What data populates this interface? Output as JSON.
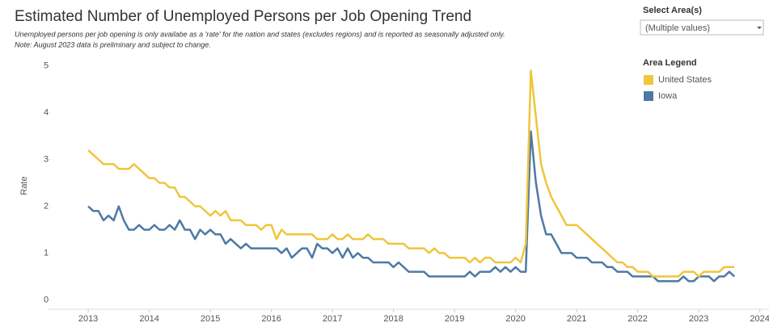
{
  "chart_data": {
    "type": "line",
    "title": "Estimated Number of Unemployed Persons per Job Opening Trend",
    "subtitle": [
      "Unemployed persons per job opening is only availabe as a 'rate' for the nation and states (excludes regions) and is reported as seasonally adjusted only.",
      "Note: August 2023 data is preliminary and subject to change."
    ],
    "y_label": "Rate",
    "filter_label": "Select Area(s)",
    "filter_value": "(Multiple values)",
    "legend_title": "Area Legend",
    "legend": "top-right",
    "grid": false,
    "xlim": [
      2012.35,
      2024.15
    ],
    "ylim": [
      -0.2,
      5.2
    ],
    "xticks": [
      2013,
      2014,
      2015,
      2016,
      2017,
      2018,
      2019,
      2020,
      2021,
      2022,
      2023,
      2024
    ],
    "yticks": [
      0,
      1,
      2,
      3,
      4,
      5
    ],
    "x": [
      2013,
      2013.083,
      2013.167,
      2013.25,
      2013.333,
      2013.417,
      2013.5,
      2013.583,
      2013.667,
      2013.75,
      2013.833,
      2013.917,
      2014,
      2014.083,
      2014.167,
      2014.25,
      2014.333,
      2014.417,
      2014.5,
      2014.583,
      2014.667,
      2014.75,
      2014.833,
      2014.917,
      2015,
      2015.083,
      2015.167,
      2015.25,
      2015.333,
      2015.417,
      2015.5,
      2015.583,
      2015.667,
      2015.75,
      2015.833,
      2015.917,
      2016,
      2016.083,
      2016.167,
      2016.25,
      2016.333,
      2016.417,
      2016.5,
      2016.583,
      2016.667,
      2016.75,
      2016.833,
      2016.917,
      2017,
      2017.083,
      2017.167,
      2017.25,
      2017.333,
      2017.417,
      2017.5,
      2017.583,
      2017.667,
      2017.75,
      2017.833,
      2017.917,
      2018,
      2018.083,
      2018.167,
      2018.25,
      2018.333,
      2018.417,
      2018.5,
      2018.583,
      2018.667,
      2018.75,
      2018.833,
      2018.917,
      2019,
      2019.083,
      2019.167,
      2019.25,
      2019.333,
      2019.417,
      2019.5,
      2019.583,
      2019.667,
      2019.75,
      2019.833,
      2019.917,
      2020,
      2020.083,
      2020.167,
      2020.25,
      2020.333,
      2020.417,
      2020.5,
      2020.583,
      2020.667,
      2020.75,
      2020.833,
      2020.917,
      2021,
      2021.083,
      2021.167,
      2021.25,
      2021.333,
      2021.417,
      2021.5,
      2021.583,
      2021.667,
      2021.75,
      2021.833,
      2021.917,
      2022,
      2022.083,
      2022.167,
      2022.25,
      2022.333,
      2022.417,
      2022.5,
      2022.583,
      2022.667,
      2022.75,
      2022.833,
      2022.917,
      2023,
      2023.083,
      2023.167,
      2023.25,
      2023.333,
      2023.417,
      2023.5,
      2023.583
    ],
    "series": [
      {
        "name": "United States",
        "color": "#efc63c",
        "values": [
          3.2,
          3.1,
          3.0,
          2.9,
          2.9,
          2.9,
          2.8,
          2.8,
          2.8,
          2.9,
          2.8,
          2.7,
          2.6,
          2.6,
          2.5,
          2.5,
          2.4,
          2.4,
          2.2,
          2.2,
          2.1,
          2.0,
          2.0,
          1.9,
          1.8,
          1.9,
          1.8,
          1.9,
          1.7,
          1.7,
          1.7,
          1.6,
          1.6,
          1.6,
          1.5,
          1.6,
          1.6,
          1.3,
          1.5,
          1.4,
          1.4,
          1.4,
          1.4,
          1.4,
          1.4,
          1.3,
          1.3,
          1.3,
          1.4,
          1.3,
          1.3,
          1.4,
          1.3,
          1.3,
          1.3,
          1.4,
          1.3,
          1.3,
          1.3,
          1.2,
          1.2,
          1.2,
          1.2,
          1.1,
          1.1,
          1.1,
          1.1,
          1.0,
          1.1,
          1.0,
          1.0,
          0.9,
          0.9,
          0.9,
          0.9,
          0.8,
          0.9,
          0.8,
          0.9,
          0.9,
          0.8,
          0.8,
          0.8,
          0.8,
          0.9,
          0.8,
          1.2,
          4.9,
          3.9,
          2.9,
          2.5,
          2.2,
          2.0,
          1.8,
          1.6,
          1.6,
          1.6,
          1.5,
          1.4,
          1.3,
          1.2,
          1.1,
          1.0,
          0.9,
          0.8,
          0.8,
          0.7,
          0.7,
          0.6,
          0.6,
          0.6,
          0.5,
          0.5,
          0.5,
          0.5,
          0.5,
          0.5,
          0.6,
          0.6,
          0.6,
          0.5,
          0.6,
          0.6,
          0.6,
          0.6,
          0.7,
          0.7,
          0.7
        ]
      },
      {
        "name": "Iowa",
        "color": "#4e79a7",
        "values": [
          2.0,
          1.9,
          1.9,
          1.7,
          1.8,
          1.7,
          2.0,
          1.7,
          1.5,
          1.5,
          1.6,
          1.5,
          1.5,
          1.6,
          1.5,
          1.5,
          1.6,
          1.5,
          1.7,
          1.5,
          1.5,
          1.3,
          1.5,
          1.4,
          1.5,
          1.4,
          1.4,
          1.2,
          1.3,
          1.2,
          1.1,
          1.2,
          1.1,
          1.1,
          1.1,
          1.1,
          1.1,
          1.1,
          1.0,
          1.1,
          0.9,
          1.0,
          1.1,
          1.1,
          0.9,
          1.2,
          1.1,
          1.1,
          1.0,
          1.1,
          0.9,
          1.1,
          0.9,
          1.0,
          0.9,
          0.9,
          0.8,
          0.8,
          0.8,
          0.8,
          0.7,
          0.8,
          0.7,
          0.6,
          0.6,
          0.6,
          0.6,
          0.5,
          0.5,
          0.5,
          0.5,
          0.5,
          0.5,
          0.5,
          0.5,
          0.6,
          0.5,
          0.6,
          0.6,
          0.6,
          0.7,
          0.6,
          0.7,
          0.6,
          0.7,
          0.6,
          0.6,
          3.6,
          2.5,
          1.8,
          1.4,
          1.4,
          1.2,
          1.0,
          1.0,
          1.0,
          0.9,
          0.9,
          0.9,
          0.8,
          0.8,
          0.8,
          0.7,
          0.7,
          0.6,
          0.6,
          0.6,
          0.5,
          0.5,
          0.5,
          0.5,
          0.5,
          0.4,
          0.4,
          0.4,
          0.4,
          0.4,
          0.5,
          0.4,
          0.4,
          0.5,
          0.5,
          0.5,
          0.4,
          0.5,
          0.5,
          0.6,
          0.5
        ]
      }
    ]
  }
}
